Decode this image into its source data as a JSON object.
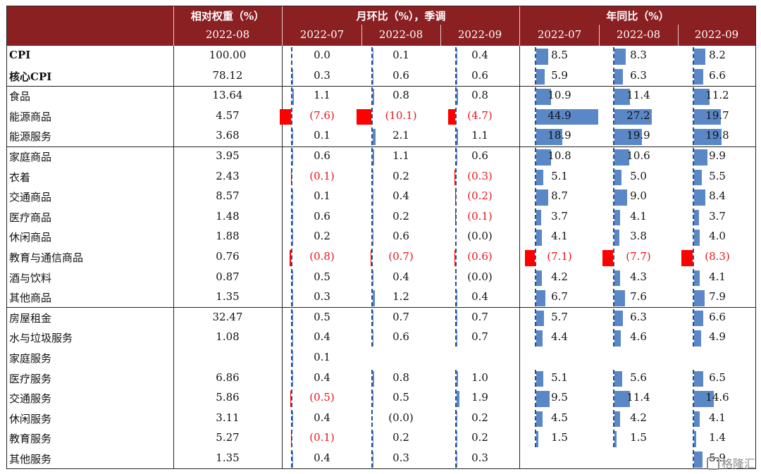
{
  "header": {
    "col_weight": "相对权重（%）",
    "col_mom": "月环比（%），季调",
    "col_yoy": "年同比（%）",
    "weight_date": "2022-08",
    "mom_dates": [
      "2022-07",
      "2022-08",
      "2022-09"
    ],
    "yoy_dates": [
      "2022-07",
      "2022-08",
      "2022-09"
    ]
  },
  "colors": {
    "header_bg": "#8b2023",
    "positive_bar": "#5a88c6",
    "negative_bar": "#ff0000",
    "negative_text": "#e8141b"
  },
  "rows": [
    {
      "label": "CPI",
      "bold": true,
      "weight": "100.00",
      "mom": [
        "0.0",
        "0.1",
        "0.4"
      ],
      "yoy": [
        "8.5",
        "8.3",
        "8.2"
      ]
    },
    {
      "label": "核心CPI",
      "bold": true,
      "weight": "78.12",
      "mom": [
        "0.3",
        "0.6",
        "0.6"
      ],
      "yoy": [
        "5.9",
        "6.3",
        "6.6"
      ]
    },
    {
      "label": "食品",
      "weight": "13.64",
      "mom": [
        "1.1",
        "0.8",
        "0.8"
      ],
      "yoy": [
        "10.9",
        "11.4",
        "11.2"
      ]
    },
    {
      "label": "能源商品",
      "weight": "4.57",
      "mom": [
        "(7.6)",
        "(10.1)",
        "(4.7)"
      ],
      "yoy": [
        "44.9",
        "27.2",
        "19.7"
      ]
    },
    {
      "label": "能源服务",
      "weight": "3.68",
      "mom": [
        "0.1",
        "2.1",
        "1.1"
      ],
      "yoy": [
        "18.9",
        "19.9",
        "19.8"
      ]
    },
    {
      "label": "家庭商品",
      "weight": "3.95",
      "mom": [
        "0.6",
        "1.1",
        "0.6"
      ],
      "yoy": [
        "10.8",
        "10.6",
        "9.9"
      ]
    },
    {
      "label": "衣着",
      "weight": "2.43",
      "mom": [
        "(0.1)",
        "0.2",
        "(0.3)"
      ],
      "yoy": [
        "5.1",
        "5.0",
        "5.5"
      ]
    },
    {
      "label": "交通商品",
      "weight": "8.57",
      "mom": [
        "0.1",
        "0.4",
        "(0.2)"
      ],
      "yoy": [
        "8.7",
        "9.0",
        "8.4"
      ]
    },
    {
      "label": "医疗商品",
      "weight": "1.48",
      "mom": [
        "0.6",
        "0.2",
        "(0.1)"
      ],
      "yoy": [
        "3.7",
        "4.1",
        "3.7"
      ]
    },
    {
      "label": "休闲商品",
      "weight": "1.88",
      "mom": [
        "0.2",
        "0.6",
        "(0.0)"
      ],
      "yoy": [
        "4.1",
        "3.8",
        "4.0"
      ]
    },
    {
      "label": "教育与通信商品",
      "weight": "0.76",
      "mom": [
        "(0.8)",
        "(0.7)",
        "(0.6)"
      ],
      "yoy": [
        "(7.1)",
        "(7.7)",
        "(8.3)"
      ]
    },
    {
      "label": "酒与饮料",
      "weight": "0.87",
      "mom": [
        "0.5",
        "0.4",
        "(0.0)"
      ],
      "yoy": [
        "4.2",
        "4.3",
        "4.1"
      ]
    },
    {
      "label": "其他商品",
      "weight": "1.35",
      "mom": [
        "0.3",
        "1.2",
        "0.4"
      ],
      "yoy": [
        "6.7",
        "7.6",
        "7.9"
      ]
    },
    {
      "label": "房屋租金",
      "weight": "32.47",
      "mom": [
        "0.5",
        "0.7",
        "0.7"
      ],
      "yoy": [
        "5.7",
        "6.3",
        "6.6"
      ]
    },
    {
      "label": "水与垃圾服务",
      "weight": "1.08",
      "mom": [
        "0.4",
        "0.6",
        "0.7"
      ],
      "yoy": [
        "4.4",
        "4.6",
        "4.9"
      ]
    },
    {
      "label": "家庭服务",
      "weight": "",
      "mom": [
        "0.1",
        "",
        ""
      ],
      "yoy": [
        "",
        "",
        ""
      ]
    },
    {
      "label": "医疗服务",
      "weight": "6.86",
      "mom": [
        "0.4",
        "0.8",
        "1.0"
      ],
      "yoy": [
        "5.1",
        "5.6",
        "6.5"
      ]
    },
    {
      "label": "交通服务",
      "weight": "5.86",
      "mom": [
        "(0.5)",
        "0.5",
        "1.9"
      ],
      "yoy": [
        "9.5",
        "11.4",
        "14.6"
      ]
    },
    {
      "label": "休闲服务",
      "weight": "3.11",
      "mom": [
        "0.4",
        "(0.0)",
        "0.2"
      ],
      "yoy": [
        "4.5",
        "4.2",
        "4.1"
      ]
    },
    {
      "label": "教育服务",
      "weight": "5.27",
      "mom": [
        "(0.1)",
        "0.2",
        "0.2"
      ],
      "yoy": [
        "1.5",
        "1.5",
        "1.4"
      ]
    },
    {
      "label": "其他服务",
      "weight": "1.35",
      "mom": [
        "0.4",
        "0.3",
        "0.3"
      ],
      "yoy": [
        "",
        "",
        "5.9"
      ]
    }
  ],
  "watermark": "格隆汇"
}
